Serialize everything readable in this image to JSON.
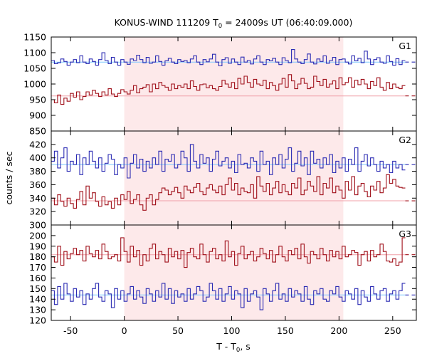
{
  "chart_data": {
    "type": "line",
    "title": {
      "prefix": "KONUS-WIND 111209 T",
      "sub": "0",
      "suffix": " = 24009s UT (06:40:09.000)"
    },
    "ylabel": "counts / sec",
    "xlabel": {
      "prefix": "T - T",
      "sub": "0",
      "suffix": ", s"
    },
    "xlim": [
      -68,
      272
    ],
    "x_ticks": [
      -50,
      0,
      50,
      100,
      150,
      200,
      250
    ],
    "shaded_interval": [
      0,
      204
    ],
    "colors": {
      "blue": "#2b2bb3",
      "red": "#a0101a",
      "blue_fit": "#7fc8ff",
      "red_fit": "#f0a0a8",
      "shade": "#fde9ea"
    },
    "panels": [
      {
        "label": "G1",
        "ylim": [
          850,
          1150
        ],
        "y_ticks": [
          850,
          900,
          950,
          1000,
          1050,
          1100,
          1150
        ],
        "tick_labels_shown": [
          900,
          950,
          1000,
          1050,
          1100,
          1150
        ],
        "series": [
          {
            "color": "blue",
            "start": -68,
            "step": 2.944,
            "background_level": 1070,
            "values": [
              1075,
              1065,
              1068,
              1080,
              1072,
              1060,
              1070,
              1078,
              1068,
              1090,
              1070,
              1065,
              1080,
              1072,
              1060,
              1078,
              1100,
              1075,
              1065,
              1085,
              1070,
              1060,
              1078,
              1070,
              1063,
              1080,
              1075,
              1092,
              1078,
              1068,
              1085,
              1066,
              1070,
              1090,
              1072,
              1060,
              1074,
              1082,
              1070,
              1065,
              1078,
              1072,
              1075,
              1068,
              1080,
              1090,
              1070,
              1062,
              1078,
              1071,
              1080,
              1095,
              1070,
              1058,
              1078,
              1084,
              1066,
              1080,
              1070,
              1062,
              1086,
              1070,
              1075,
              1064,
              1080,
              1090,
              1070,
              1062,
              1078,
              1074,
              1082,
              1070,
              1062,
              1084,
              1075,
              1068,
              1110,
              1080,
              1070,
              1065,
              1078,
              1096,
              1070,
              1064,
              1080,
              1072,
              1090,
              1066,
              1075,
              1085,
              1062,
              1078,
              1080,
              1070,
              1064,
              1090,
              1074,
              1082,
              1068,
              1105,
              1080,
              1062,
              1078,
              1084,
              1070,
              1066,
              1090,
              1072,
              1060,
              1081,
              1062,
              1075
            ]
          },
          {
            "color": "red",
            "start": -68,
            "step": 2.944,
            "background_level": 962,
            "values": [
              950,
              940,
              965,
              935,
              955,
              945,
              970,
              958,
              975,
              950,
              960,
              975,
              965,
              980,
              970,
              960,
              975,
              965,
              985,
              968,
              960,
              970,
              982,
              975,
              968,
              980,
              995,
              972,
              985,
              990,
              998,
              975,
              1000,
              985,
              1005,
              995,
              990,
              980,
              1000,
              985,
              995,
              990,
              1000,
              985,
              1010,
              992,
              980,
              998,
              1000,
              988,
              995,
              985,
              980,
              992,
              1012,
              1000,
              990,
              1005,
              985,
              1018,
              1000,
              1025,
              1005,
              990,
              1015,
              1000,
              995,
              1012,
              985,
              1005,
              995,
              980,
              1000,
              1018,
              990,
              1030,
              1010,
              985,
              1000,
              1018,
              1002,
              985,
              990,
              1025,
              1008,
              995,
              1015,
              990,
              1000,
              1010,
              985,
              1020,
              998,
              1005,
              1020,
              990,
              1012,
              998,
              1015,
              1000,
              985,
              1008,
              995,
              1020,
              990,
              980,
              1005,
              985,
              1000,
              990,
              985,
              995
            ]
          }
        ]
      },
      {
        "label": "G2",
        "ylim": [
          300,
          440
        ],
        "y_ticks": [
          300,
          320,
          340,
          360,
          380,
          400,
          420,
          440
        ],
        "tick_labels_shown": [
          320,
          340,
          360,
          380,
          400,
          420
        ],
        "series": [
          {
            "color": "blue",
            "start": -68,
            "step": 2.944,
            "background_level": 390,
            "values": [
              395,
              410,
              385,
              400,
              415,
              380,
              395,
              390,
              405,
              375,
              400,
              390,
              410,
              395,
              385,
              400,
              380,
              392,
              405,
              398,
              375,
              390,
              385,
              400,
              370,
              392,
              405,
              385,
              398,
              380,
              395,
              385,
              400,
              390,
              410,
              380,
              398,
              395,
              405,
              385,
              390,
              410,
              400,
              380,
              420,
              395,
              385,
              405,
              392,
              400,
              380,
              398,
              410,
              388,
              395,
              400,
              385,
              395,
              378,
              405,
              390,
              392,
              385,
              400,
              395,
              380,
              410,
              390,
              395,
              375,
              400,
              390,
              405,
              385,
              398,
              415,
              380,
              392,
              410,
              388,
              400,
              375,
              410,
              392,
              398,
              385,
              400,
              390,
              405,
              378,
              395,
              385,
              400,
              380,
              398,
              390,
              415,
              380,
              395,
              405,
              388,
              400,
              390,
              380,
              395,
              385,
              390,
              378,
              395,
              385,
              390,
              382
            ]
          },
          {
            "color": "red",
            "start": -68,
            "step": 2.944,
            "background_level": 336,
            "values": [
              340,
              330,
              345,
              335,
              328,
              340,
              332,
              325,
              338,
              350,
              330,
              358,
              340,
              348,
              335,
              328,
              342,
              330,
              335,
              325,
              340,
              330,
              345,
              338,
              350,
              332,
              338,
              345,
              330,
              322,
              340,
              345,
              330,
              338,
              348,
              355,
              352,
              345,
              350,
              356,
              348,
              340,
              358,
              352,
              348,
              356,
              362,
              350,
              345,
              355,
              360,
              352,
              348,
              358,
              345,
              360,
              370,
              352,
              362,
              345,
              355,
              350,
              348,
              360,
              340,
              372,
              358,
              350,
              362,
              345,
              355,
              365,
              348,
              360,
              350,
              345,
              362,
              355,
              370,
              345,
              352,
              365,
              358,
              350,
              372,
              345,
              362,
              355,
              370,
              348,
              358,
              352,
              340,
              365,
              352,
              372,
              345,
              358,
              362,
              350,
              342,
              358,
              352,
              365,
              348,
              355,
              375,
              362,
              368,
              358,
              356,
              355
            ]
          }
        ]
      },
      {
        "label": "G3",
        "ylim": [
          120,
          210
        ],
        "y_ticks": [
          120,
          130,
          140,
          150,
          160,
          170,
          180,
          190,
          200,
          210
        ],
        "tick_labels_shown": [
          120,
          130,
          140,
          150,
          160,
          170,
          180,
          190,
          200
        ],
        "series": [
          {
            "color": "red",
            "start": -68,
            "step": 2.944,
            "background_level": 182,
            "values": [
              180,
              175,
              190,
              172,
              185,
              178,
              183,
              188,
              182,
              186,
              176,
              190,
              183,
              180,
              186,
              178,
              192,
              185,
              178,
              180,
              182,
              176,
              198,
              185,
              175,
              190,
              180,
              186,
              172,
              182,
              176,
              188,
              192,
              178,
              185,
              182,
              175,
              188,
              180,
              185,
              178,
              186,
              170,
              184,
              188,
              180,
              178,
              192,
              182,
              175,
              185,
              188,
              178,
              182,
              176,
              195,
              180,
              185,
              172,
              183,
              190,
              178,
              182,
              185,
              176,
              180,
              188,
              183,
              178,
              186,
              175,
              182,
              190,
              180,
              176,
              186,
              182,
              188,
              178,
              192,
              180,
              174,
              185,
              182,
              178,
              188,
              182,
              176,
              186,
              180,
              185,
              178,
              190,
              180,
              182,
              186,
              184,
              172,
              182,
              185,
              176,
              186,
              180,
              182,
              192,
              185,
              176,
              175,
              178,
              172,
              175,
              198
            ]
          },
          {
            "color": "blue",
            "start": -68,
            "step": 2.944,
            "background_level": 144,
            "values": [
              148,
              135,
              152,
              140,
              155,
              145,
              138,
              150,
              142,
              148,
              135,
              145,
              140,
              150,
              155,
              142,
              138,
              148,
              145,
              132,
              150,
              140,
              148,
              138,
              145,
              152,
              140,
              148,
              142,
              136,
              150,
              145,
              138,
              148,
              142,
              155,
              140,
              150,
              136,
              148,
              142,
              145,
              138,
              150,
              140,
              145,
              152,
              148,
              138,
              142,
              155,
              148,
              140,
              150,
              138,
              145,
              152,
              140,
              148,
              145,
              132,
              150,
              138,
              145,
              148,
              142,
              130,
              150,
              145,
              138,
              148,
              155,
              140,
              145,
              138,
              150,
              142,
              148,
              145,
              138,
              152,
              140,
              135,
              148,
              145,
              150,
              140,
              138,
              148,
              145,
              152,
              142,
              138,
              148,
              145,
              140,
              150,
              135,
              148,
              142,
              138,
              152,
              145,
              140,
              148,
              150,
              138,
              145,
              148,
              140,
              148,
              155
            ]
          }
        ]
      }
    ]
  }
}
